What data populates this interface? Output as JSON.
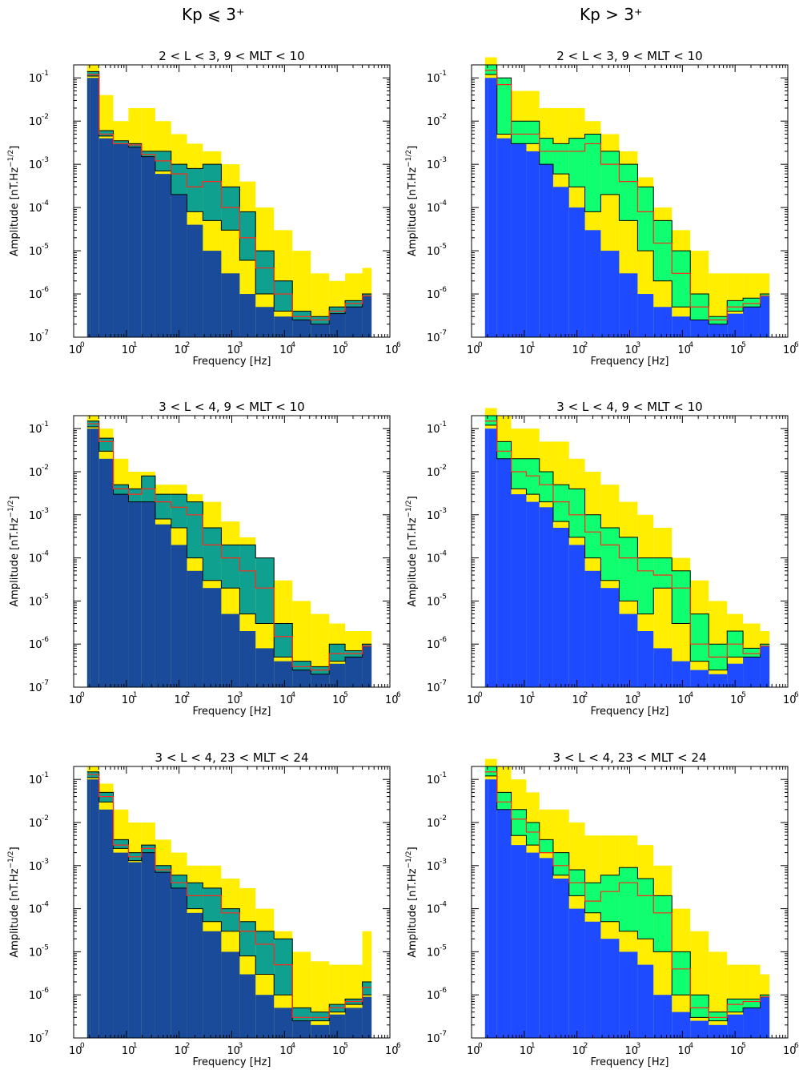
{
  "headers": {
    "left": "Kp ⩽ 3⁺",
    "right": "Kp > 3⁺"
  },
  "colors": {
    "left_floor": "#1a4b9a",
    "right_floor": "#1e4bff",
    "yellow": "#ffee00",
    "left_fill": "#10a090",
    "right_fill": "#10ff70",
    "median": "#ff2a1a",
    "percentile": "#000000"
  },
  "axis_text": {
    "xlabel": "Frequency [Hz]",
    "ylabel": "Amplitude [nT.Hz⁻¹ᐟ²]",
    "ylabel_plain": "Amplitude [nT.Hz",
    "ylabel_sup": "−1/2",
    "ylabel_end": "]",
    "x_ticks": [
      "0",
      "1",
      "2",
      "3",
      "4",
      "5",
      "6"
    ],
    "y_ticks": [
      "-1",
      "-2",
      "-3",
      "-4",
      "-5",
      "-6",
      "-7"
    ]
  },
  "chart_data": [
    {
      "type": "area",
      "title": "2 < L < 3,  9 < MLT < 10",
      "group": "left",
      "xlabel": "Frequency [Hz]",
      "ylabel": "Amplitude [nT.Hz^-1/2]",
      "x_scale": "log",
      "y_scale": "log",
      "xlim": [
        1,
        1000000
      ],
      "ylim": [
        1e-07,
        0.2
      ],
      "freqs": [
        1.8,
        2.3,
        4,
        8,
        15,
        25,
        50,
        100,
        200,
        400,
        1000,
        2000,
        4000,
        10000,
        20000,
        50000,
        100000,
        200000,
        450000
      ],
      "series": [
        {
          "key": "floor",
          "values": [
            0.1,
            0.1,
            0.004,
            0.003,
            0.0025,
            0.0015,
            0.0006,
            0.0002,
            4e-05,
            1e-05,
            3e-06,
            1e-06,
            5e-07,
            3e-07,
            2.5e-07,
            2e-07,
            3.5e-07,
            5e-07,
            9e-07
          ]
        },
        {
          "key": "max",
          "values": [
            0.2,
            0.2,
            0.04,
            0.01,
            0.02,
            0.02,
            0.01,
            0.005,
            0.003,
            0.002,
            0.001,
            0.0004,
            0.0001,
            3e-05,
            1e-05,
            3e-06,
            2e-06,
            3e-06,
            4e-06
          ]
        },
        {
          "key": "p90",
          "values": [
            0.14,
            0.14,
            0.006,
            0.0035,
            0.003,
            0.002,
            0.002,
            0.001,
            0.0008,
            0.001,
            0.0003,
            8e-05,
            1e-05,
            2e-06,
            4e-07,
            3e-07,
            5e-07,
            7e-07,
            1e-06
          ]
        },
        {
          "key": "median",
          "values": [
            0.12,
            0.12,
            0.005,
            0.003,
            0.0028,
            0.0017,
            0.0012,
            0.0006,
            0.0003,
            0.0004,
            0.0001,
            2e-05,
            4e-06,
            1e-06,
            3e-07,
            2.5e-07,
            4e-07,
            6e-07,
            9e-07
          ]
        },
        {
          "key": "p10",
          "values": [
            0.11,
            0.11,
            0.0045,
            0.003,
            0.0025,
            0.0015,
            0.0007,
            0.0002,
            8e-05,
            5e-05,
            3e-05,
            6e-06,
            1e-06,
            4e-07,
            2.5e-07,
            2e-07,
            3.5e-07,
            5e-07,
            9e-07
          ]
        }
      ]
    },
    {
      "type": "area",
      "title": "2 < L < 3,  9 < MLT < 10",
      "group": "right",
      "xlabel": "Frequency [Hz]",
      "ylabel": "Amplitude [nT.Hz^-1/2]",
      "x_scale": "log",
      "y_scale": "log",
      "xlim": [
        1,
        1000000
      ],
      "ylim": [
        1e-07,
        0.2
      ],
      "freqs": [
        1.8,
        2.3,
        4,
        8,
        15,
        25,
        50,
        100,
        200,
        400,
        1000,
        2000,
        4000,
        10000,
        20000,
        50000,
        100000,
        200000,
        450000
      ],
      "series": [
        {
          "key": "floor",
          "values": [
            0.1,
            0.1,
            0.004,
            0.003,
            0.002,
            0.001,
            0.0003,
            0.0001,
            3e-05,
            1e-05,
            3e-06,
            1e-06,
            5e-07,
            3e-07,
            2.5e-07,
            2e-07,
            3.5e-07,
            5e-07,
            9e-07
          ]
        },
        {
          "key": "max",
          "values": [
            0.3,
            0.3,
            0.1,
            0.05,
            0.05,
            0.02,
            0.02,
            0.02,
            0.01,
            0.005,
            0.002,
            0.0005,
            0.0001,
            3e-05,
            1e-05,
            3e-06,
            3e-06,
            3e-06,
            3e-06
          ]
        },
        {
          "key": "p90",
          "values": [
            0.2,
            0.2,
            0.1,
            0.01,
            0.01,
            0.004,
            0.003,
            0.004,
            0.005,
            0.002,
            0.001,
            0.0003,
            5e-05,
            1e-05,
            1e-06,
            3e-07,
            7e-07,
            8e-07,
            1e-06
          ]
        },
        {
          "key": "median",
          "values": [
            0.15,
            0.15,
            0.07,
            0.005,
            0.005,
            0.002,
            0.002,
            0.002,
            0.003,
            0.001,
            0.0004,
            8e-05,
            1.5e-05,
            3e-06,
            5e-07,
            2.5e-07,
            5e-07,
            6e-07,
            9e-07
          ]
        },
        {
          "key": "p10",
          "values": [
            0.12,
            0.12,
            0.005,
            0.003,
            0.003,
            0.001,
            0.0006,
            0.0003,
            8e-05,
            0.0002,
            5e-05,
            1e-05,
            2e-06,
            5e-07,
            2.5e-07,
            2e-07,
            4e-07,
            5e-07,
            9e-07
          ]
        }
      ]
    },
    {
      "type": "area",
      "title": "3 < L < 4,  9 < MLT < 10",
      "group": "left",
      "xlabel": "Frequency [Hz]",
      "ylabel": "Amplitude [nT.Hz^-1/2]",
      "x_scale": "log",
      "y_scale": "log",
      "xlim": [
        1,
        1000000
      ],
      "ylim": [
        1e-07,
        0.2
      ],
      "freqs": [
        1.8,
        2.3,
        4,
        8,
        15,
        25,
        50,
        100,
        200,
        400,
        1000,
        2000,
        4000,
        10000,
        20000,
        50000,
        100000,
        200000,
        450000
      ],
      "series": [
        {
          "key": "floor",
          "values": [
            0.1,
            0.1,
            0.02,
            0.003,
            0.002,
            0.002,
            0.0006,
            0.0002,
            5e-05,
            2e-05,
            5e-06,
            2e-06,
            8e-07,
            4e-07,
            2.5e-07,
            2e-07,
            3.5e-07,
            5e-07,
            9e-07
          ]
        },
        {
          "key": "max",
          "values": [
            0.2,
            0.2,
            0.1,
            0.02,
            0.01,
            0.01,
            0.005,
            0.005,
            0.003,
            0.002,
            0.0007,
            0.0003,
            0.0001,
            3e-05,
            1e-05,
            5e-06,
            3e-06,
            2e-06,
            2e-06
          ]
        },
        {
          "key": "p90",
          "values": [
            0.15,
            0.15,
            0.06,
            0.005,
            0.004,
            0.008,
            0.003,
            0.003,
            0.002,
            0.0005,
            0.0002,
            0.0002,
            0.0001,
            3e-06,
            4e-07,
            3e-07,
            1e-06,
            7e-07,
            1e-06
          ]
        },
        {
          "key": "median",
          "values": [
            0.13,
            0.13,
            0.05,
            0.004,
            0.003,
            0.004,
            0.002,
            0.0015,
            0.001,
            0.0002,
            0.0001,
            5e-05,
            2e-05,
            1.5e-06,
            3e-07,
            2.5e-07,
            6e-07,
            6e-07,
            9e-07
          ]
        },
        {
          "key": "p10",
          "values": [
            0.11,
            0.11,
            0.03,
            0.003,
            0.002,
            0.002,
            0.0008,
            0.0005,
            0.0001,
            3e-05,
            2e-05,
            5e-06,
            3e-06,
            5e-07,
            2.5e-07,
            2e-07,
            4e-07,
            5e-07,
            9e-07
          ]
        }
      ]
    },
    {
      "type": "area",
      "title": "3 < L < 4,  9 < MLT < 10",
      "group": "right",
      "xlabel": "Frequency [Hz]",
      "ylabel": "Amplitude [nT.Hz^-1/2]",
      "x_scale": "log",
      "y_scale": "log",
      "xlim": [
        1,
        1000000
      ],
      "ylim": [
        1e-07,
        0.2
      ],
      "freqs": [
        1.8,
        2.3,
        4,
        8,
        15,
        25,
        50,
        100,
        200,
        400,
        1000,
        2000,
        4000,
        10000,
        20000,
        50000,
        100000,
        200000,
        450000
      ],
      "series": [
        {
          "key": "floor",
          "values": [
            0.1,
            0.1,
            0.02,
            0.003,
            0.002,
            0.0015,
            0.0005,
            0.0002,
            5e-05,
            2e-05,
            5e-06,
            2e-06,
            8e-07,
            4e-07,
            2.5e-07,
            2e-07,
            3.5e-07,
            5e-07,
            9e-07
          ]
        },
        {
          "key": "max",
          "values": [
            0.3,
            0.3,
            0.2,
            0.1,
            0.1,
            0.05,
            0.05,
            0.02,
            0.01,
            0.005,
            0.002,
            0.001,
            0.0005,
            0.0001,
            3e-05,
            1e-05,
            5e-06,
            3e-06,
            2e-06
          ]
        },
        {
          "key": "p90",
          "values": [
            0.2,
            0.2,
            0.05,
            0.02,
            0.02,
            0.01,
            0.005,
            0.004,
            0.001,
            0.0005,
            0.0003,
            0.0001,
            0.0001,
            5e-05,
            5e-06,
            1e-06,
            2e-06,
            8e-07,
            1e-06
          ]
        },
        {
          "key": "median",
          "values": [
            0.15,
            0.15,
            0.03,
            0.01,
            0.008,
            0.005,
            0.002,
            0.001,
            0.0004,
            0.0002,
            0.0001,
            5e-05,
            4e-05,
            2e-05,
            1e-06,
            5e-07,
            1e-06,
            6e-07,
            9e-07
          ]
        },
        {
          "key": "p10",
          "values": [
            0.12,
            0.12,
            0.02,
            0.004,
            0.003,
            0.002,
            0.0007,
            0.0003,
            0.0001,
            3e-05,
            1e-05,
            5e-06,
            2e-05,
            3e-06,
            4e-07,
            2.5e-07,
            5e-07,
            5e-07,
            9e-07
          ]
        }
      ]
    },
    {
      "type": "area",
      "title": "3 < L < 4, 23 < MLT < 24",
      "group": "left",
      "xlabel": "Frequency [Hz]",
      "ylabel": "Amplitude [nT.Hz^-1/2]",
      "x_scale": "log",
      "y_scale": "log",
      "xlim": [
        1,
        1000000
      ],
      "ylim": [
        1e-07,
        0.2
      ],
      "freqs": [
        1.8,
        2.3,
        4,
        8,
        15,
        25,
        50,
        100,
        200,
        400,
        1000,
        2000,
        4000,
        10000,
        20000,
        50000,
        100000,
        200000,
        450000
      ],
      "series": [
        {
          "key": "floor",
          "values": [
            0.1,
            0.1,
            0.02,
            0.002,
            0.0012,
            0.002,
            0.0007,
            0.0003,
            8e-05,
            3e-05,
            1e-05,
            3e-06,
            1e-06,
            5e-07,
            2.5e-07,
            2e-07,
            3.5e-07,
            5e-07,
            9e-07
          ]
        },
        {
          "key": "max",
          "values": [
            0.2,
            0.2,
            0.08,
            0.02,
            0.01,
            0.01,
            0.004,
            0.002,
            0.001,
            0.001,
            0.0005,
            0.0003,
            0.0001,
            3e-05,
            1e-05,
            6e-06,
            5e-06,
            5e-06,
            3e-05
          ]
        },
        {
          "key": "p90",
          "values": [
            0.15,
            0.15,
            0.05,
            0.004,
            0.002,
            0.003,
            0.001,
            0.0006,
            0.0004,
            0.0003,
            0.0001,
            5e-05,
            3e-05,
            2e-05,
            5e-07,
            4e-07,
            6e-07,
            8e-07,
            2e-06
          ]
        },
        {
          "key": "median",
          "values": [
            0.13,
            0.13,
            0.04,
            0.003,
            0.0016,
            0.0025,
            0.0008,
            0.0004,
            0.0002,
            0.0002,
            8e-05,
            3e-05,
            1.5e-05,
            5e-06,
            3e-07,
            3e-07,
            5e-07,
            7e-07,
            1.5e-06
          ]
        },
        {
          "key": "p10",
          "values": [
            0.11,
            0.11,
            0.03,
            0.0025,
            0.0013,
            0.002,
            0.0007,
            0.0003,
            0.0001,
            5e-05,
            3e-05,
            8e-06,
            3e-06,
            1e-06,
            2.5e-07,
            2.5e-07,
            4e-07,
            6e-07,
            1e-06
          ]
        }
      ]
    },
    {
      "type": "area",
      "title": "3 < L < 4, 23 < MLT < 24",
      "group": "right",
      "xlabel": "Frequency [Hz]",
      "ylabel": "Amplitude [nT.Hz^-1/2]",
      "x_scale": "log",
      "y_scale": "log",
      "xlim": [
        1,
        1000000
      ],
      "ylim": [
        1e-07,
        0.2
      ],
      "freqs": [
        1.8,
        2.3,
        4,
        8,
        15,
        25,
        50,
        100,
        200,
        400,
        1000,
        2000,
        4000,
        10000,
        20000,
        50000,
        100000,
        200000,
        450000
      ],
      "series": [
        {
          "key": "floor",
          "values": [
            0.1,
            0.1,
            0.02,
            0.003,
            0.002,
            0.0015,
            0.0005,
            0.0001,
            5e-05,
            2e-05,
            1e-05,
            5e-06,
            1e-06,
            4e-07,
            2.5e-07,
            2e-07,
            3.5e-07,
            5e-07,
            9e-07
          ]
        },
        {
          "key": "max",
          "values": [
            0.3,
            0.3,
            0.2,
            0.1,
            0.05,
            0.02,
            0.02,
            0.01,
            0.005,
            0.005,
            0.005,
            0.003,
            0.001,
            0.0001,
            3e-05,
            1e-05,
            5e-06,
            5e-06,
            3e-06
          ]
        },
        {
          "key": "p90",
          "values": [
            0.2,
            0.2,
            0.05,
            0.02,
            0.01,
            0.004,
            0.002,
            0.0008,
            0.0004,
            0.0006,
            0.0009,
            0.0005,
            0.0002,
            1e-05,
            1e-06,
            4e-07,
            8e-07,
            8e-07,
            1e-06
          ]
        },
        {
          "key": "median",
          "values": [
            0.15,
            0.15,
            0.03,
            0.012,
            0.006,
            0.002,
            0.001,
            0.0004,
            0.00015,
            0.00025,
            0.0004,
            0.0002,
            8e-05,
            4e-06,
            5e-07,
            3e-07,
            6e-07,
            7e-07,
            9e-07
          ]
        },
        {
          "key": "p10",
          "values": [
            0.12,
            0.12,
            0.02,
            0.005,
            0.003,
            0.002,
            0.0006,
            0.0002,
            8e-05,
            5e-05,
            3e-05,
            2e-05,
            1e-05,
            1e-06,
            3e-07,
            2.5e-07,
            4e-07,
            5e-07,
            9e-07
          ]
        }
      ]
    }
  ]
}
